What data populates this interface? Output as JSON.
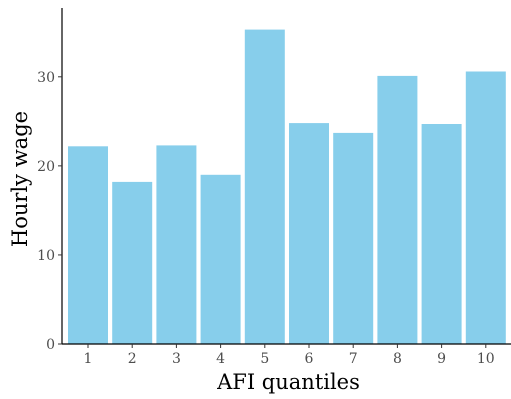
{
  "chart_data": {
    "type": "bar",
    "categories": [
      "1",
      "2",
      "3",
      "4",
      "5",
      "6",
      "7",
      "8",
      "9",
      "10"
    ],
    "values": [
      22.2,
      18.2,
      22.3,
      19.0,
      35.3,
      24.8,
      23.7,
      30.1,
      24.7,
      30.6
    ],
    "xlabel": "AFI quantiles",
    "ylabel": "Hourly wage",
    "ylim": [
      0,
      37.5
    ],
    "yticks": [
      0,
      10,
      20,
      30
    ],
    "bar_color": "#87ceeb",
    "grid": false,
    "legend": "none"
  }
}
